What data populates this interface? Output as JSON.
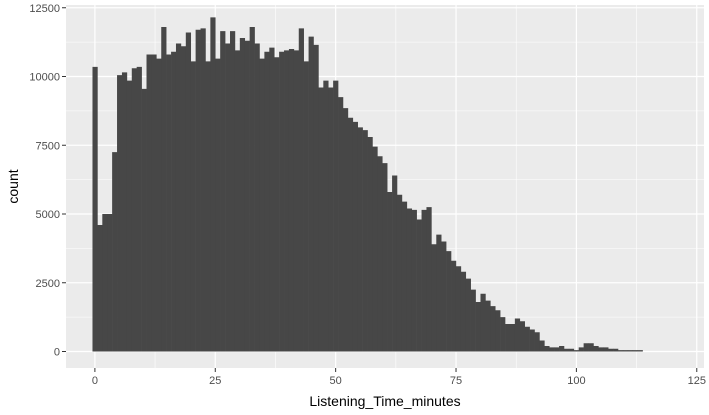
{
  "chart_data": {
    "type": "bar",
    "title": "",
    "xlabel": "Listening_Time_minutes",
    "ylabel": "count",
    "xlim": [
      -6.0,
      126.5
    ],
    "ylim": [
      -600,
      12600
    ],
    "x_ticks": [
      0,
      25,
      50,
      75,
      100,
      125
    ],
    "y_ticks": [
      0,
      2500,
      5000,
      7500,
      10000,
      12500
    ],
    "x_tick_labels": [
      "0",
      "25",
      "50",
      "75",
      "100",
      "125"
    ],
    "y_tick_labels": [
      "0",
      "2500",
      "5000",
      "7500",
      "10000",
      "12500"
    ],
    "grid": true,
    "legend": "none",
    "bin_start": -0.5,
    "bin_width": 1.02,
    "counts": [
      10350,
      4600,
      5000,
      5000,
      7250,
      10050,
      10150,
      9850,
      10300,
      10350,
      9550,
      10800,
      10800,
      10650,
      11800,
      10800,
      10900,
      11200,
      11100,
      11600,
      10550,
      11700,
      11750,
      10550,
      12150,
      10650,
      11650,
      11200,
      11650,
      10950,
      11400,
      11300,
      11800,
      11200,
      10650,
      10900,
      11050,
      10700,
      10900,
      10950,
      11000,
      10950,
      11750,
      10550,
      11450,
      11150,
      9600,
      9850,
      9600,
      9850,
      9250,
      8850,
      8500,
      8350,
      8150,
      8050,
      7800,
      7450,
      7100,
      6850,
      5800,
      6400,
      5700,
      5450,
      5200,
      5150,
      4800,
      5150,
      5250,
      3900,
      4250,
      4000,
      3650,
      3300,
      3100,
      2900,
      2650,
      2250,
      1800,
      2100,
      1850,
      1650,
      1500,
      1250,
      1000,
      1000,
      1200,
      1100,
      900,
      800,
      700,
      400,
      200,
      150,
      150,
      200,
      100,
      100,
      50,
      150,
      300,
      300,
      200,
      150,
      150,
      100,
      100,
      50,
      50,
      50,
      50,
      50
    ],
    "bar_color": "#474747",
    "panel_background": "#ebebeb",
    "grid_color": "#ffffff"
  }
}
